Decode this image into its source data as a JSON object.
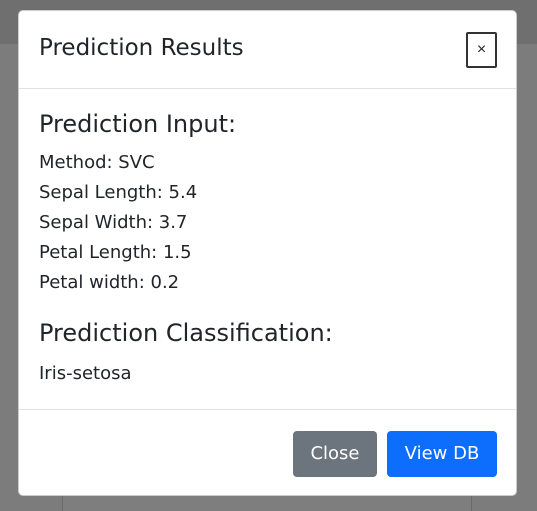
{
  "modal": {
    "title": "Prediction Results",
    "close_icon_glyph": "×",
    "input_heading": "Prediction Input:",
    "input_lines": [
      "Method: SVC",
      "Sepal Length: 5.4",
      "Sepal Width: 3.7",
      "Petal Length: 1.5",
      "Petal width: 0.2"
    ],
    "classification_heading": "Prediction Classification:",
    "classification_result": "Iris-setosa",
    "footer": {
      "close_label": "Close",
      "view_db_label": "View DB"
    }
  },
  "colors": {
    "backdrop": "#7c7c7c",
    "secondary_button": "#6c757d",
    "primary_button": "#0d6efd"
  },
  "icons": {
    "close": "close-icon"
  }
}
